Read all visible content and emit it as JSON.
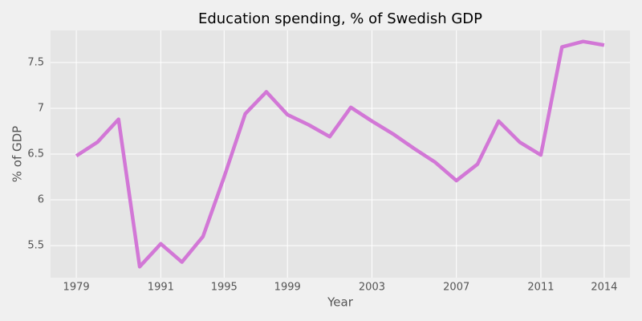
{
  "chart_data": {
    "type": "line",
    "title": "Education spending, % of Swedish GDP",
    "xlabel": "Year",
    "ylabel": "% of GDP",
    "categories": [
      "1979",
      null,
      null,
      null,
      "1991",
      null,
      null,
      "1995",
      null,
      null,
      "1999",
      null,
      null,
      null,
      "2003",
      null,
      null,
      null,
      "2007",
      null,
      null,
      null,
      "2011",
      null,
      null,
      "2014"
    ],
    "values": [
      6.48,
      6.63,
      6.88,
      5.27,
      5.52,
      5.32,
      5.6,
      6.25,
      6.94,
      7.18,
      6.93,
      6.82,
      6.69,
      7.01,
      6.86,
      6.72,
      6.56,
      6.41,
      6.21,
      6.39,
      6.86,
      6.63,
      6.49,
      7.67,
      7.73,
      7.69
    ],
    "color": "#d277d6",
    "ylim": [
      5.15,
      7.85
    ],
    "yticks": [
      5.5,
      6.0,
      6.5,
      7.0,
      7.5
    ],
    "grid": true
  }
}
